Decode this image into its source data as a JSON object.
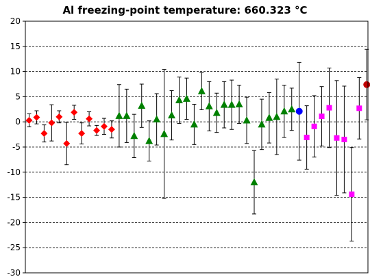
{
  "chart_data": {
    "type": "scatter",
    "title": "Al freezing-point temperature: 660.323 °C",
    "xlabel": "",
    "ylabel": "",
    "ylim": [
      -30,
      20
    ],
    "yticks": [
      20,
      15,
      10,
      5,
      0,
      -5,
      -10,
      -15,
      -20,
      -25,
      -30
    ],
    "grid": "horizontal dashed",
    "series": [
      {
        "marker": "diamond",
        "color": "#ff0000",
        "points": [
          {
            "x": 1,
            "y": 0.3,
            "err": 1.3
          },
          {
            "x": 2,
            "y": 0.9,
            "err": 1.3
          },
          {
            "x": 3,
            "y": -2.3,
            "err": 1.7
          },
          {
            "x": 4,
            "y": -0.2,
            "err": 3.6
          },
          {
            "x": 5,
            "y": 1.0,
            "err": 1.2
          },
          {
            "x": 6,
            "y": -4.3,
            "err": 4.2
          },
          {
            "x": 7,
            "y": 1.9,
            "err": 1.4
          },
          {
            "x": 8,
            "y": -2.3,
            "err": 2.1
          },
          {
            "x": 9,
            "y": 0.6,
            "err": 1.4
          },
          {
            "x": 10,
            "y": -1.7,
            "err": 1.0
          },
          {
            "x": 11,
            "y": -0.9,
            "err": 1.6
          },
          {
            "x": 12,
            "y": -1.5,
            "err": 1.7
          }
        ]
      },
      {
        "marker": "triangle",
        "color": "#008000",
        "points": [
          {
            "x": 13,
            "y": 1.2,
            "err": 6.2
          },
          {
            "x": 14,
            "y": 1.2,
            "err": 5.3
          },
          {
            "x": 15,
            "y": -2.8,
            "err": 4.3
          },
          {
            "x": 16,
            "y": 3.2,
            "err": 4.3
          },
          {
            "x": 17,
            "y": -3.8,
            "err": 4.0
          },
          {
            "x": 18,
            "y": 0.5,
            "err": 5.1
          },
          {
            "x": 19,
            "y": -2.4,
            "err": 12.8
          },
          {
            "x": 20,
            "y": 1.3,
            "err": 4.9
          },
          {
            "x": 21,
            "y": 4.3,
            "err": 4.6
          },
          {
            "x": 22,
            "y": 4.6,
            "err": 4.1
          },
          {
            "x": 23,
            "y": -0.5,
            "err": 4.0
          },
          {
            "x": 24,
            "y": 6.1,
            "err": 3.7
          },
          {
            "x": 25,
            "y": 3.1,
            "err": 4.9
          },
          {
            "x": 26,
            "y": 1.8,
            "err": 3.9
          },
          {
            "x": 27,
            "y": 3.4,
            "err": 4.6
          },
          {
            "x": 28,
            "y": 3.4,
            "err": 4.9
          },
          {
            "x": 29,
            "y": 3.5,
            "err": 3.8
          },
          {
            "x": 30,
            "y": 0.3,
            "err": 4.6
          },
          {
            "x": 31,
            "y": -12.0,
            "err": 6.3
          },
          {
            "x": 32,
            "y": -0.5,
            "err": 5.0
          },
          {
            "x": 33,
            "y": 0.8,
            "err": 5.0
          },
          {
            "x": 34,
            "y": 1.0,
            "err": 7.5
          },
          {
            "x": 35,
            "y": 2.1,
            "err": 5.2
          },
          {
            "x": 36,
            "y": 2.5,
            "err": 4.2
          }
        ]
      },
      {
        "marker": "circle",
        "color": "#0000ff",
        "points": [
          {
            "x": 37,
            "y": 2.1,
            "err": 9.7
          }
        ]
      },
      {
        "marker": "square",
        "color": "#ff00ff",
        "points": [
          {
            "x": 38,
            "y": -3.1,
            "err": 6.3
          },
          {
            "x": 39,
            "y": -0.9,
            "err": 6.1
          },
          {
            "x": 40,
            "y": 1.1,
            "err": 5.9
          },
          {
            "x": 41,
            "y": 2.8,
            "err": 7.9
          },
          {
            "x": 42,
            "y": -3.2,
            "err": 11.4
          },
          {
            "x": 43,
            "y": -3.5,
            "err": 10.6
          },
          {
            "x": 44,
            "y": -14.4,
            "err": 9.3
          },
          {
            "x": 45,
            "y": 2.7,
            "err": 6.1
          }
        ]
      },
      {
        "marker": "circle",
        "color": "#c00000",
        "points": [
          {
            "x": 46,
            "y": 7.4,
            "err": 7.0
          }
        ]
      }
    ]
  }
}
